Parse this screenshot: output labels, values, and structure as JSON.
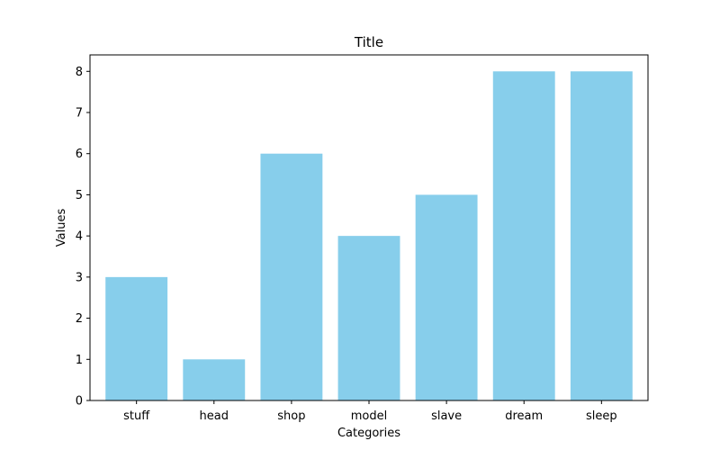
{
  "chart_data": {
    "type": "bar",
    "title": "Title",
    "xlabel": "Categories",
    "ylabel": "Values",
    "categories": [
      "stuff",
      "head",
      "shop",
      "model",
      "slave",
      "dream",
      "sleep"
    ],
    "values": [
      3,
      1,
      6,
      4,
      5,
      8,
      8
    ],
    "ylim": [
      0,
      8.4
    ],
    "yticks": [
      0,
      1,
      2,
      3,
      4,
      5,
      6,
      7,
      8
    ],
    "grid": false,
    "bar_color": "#87ceeb"
  }
}
